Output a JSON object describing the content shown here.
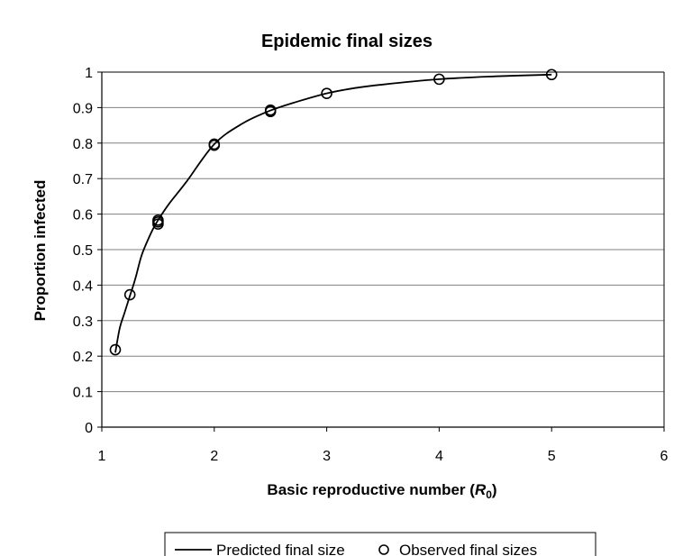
{
  "chart_data": {
    "type": "scatter",
    "title": "Epidemic final sizes",
    "xlabel": {
      "prefix": "Basic reproductive number (",
      "symbol": "R",
      "subscript": "0",
      "suffix": ")"
    },
    "ylabel": "Proportion infected",
    "xlim": [
      1,
      6
    ],
    "ylim": [
      0,
      1
    ],
    "x_ticks": [
      "1",
      "2",
      "3",
      "4",
      "5",
      "6"
    ],
    "y_ticks": [
      "0",
      "0.1",
      "0.2",
      "0.3",
      "0.4",
      "0.5",
      "0.6",
      "0.7",
      "0.8",
      "0.9",
      "1"
    ],
    "grid": "horizontal",
    "legend_position": "bottom",
    "series": [
      {
        "name": "Predicted final size",
        "type": "line",
        "color": "#000000",
        "x": [
          1.12,
          1.16,
          1.2,
          1.25,
          1.3,
          1.35,
          1.4,
          1.45,
          1.5,
          1.6,
          1.75,
          2.0,
          2.25,
          2.5,
          2.75,
          3.0,
          3.25,
          3.5,
          4.0,
          4.5,
          5.0
        ],
        "y": [
          0.21,
          0.28,
          0.32,
          0.37,
          0.42,
          0.48,
          0.52,
          0.555,
          0.583,
          0.63,
          0.69,
          0.797,
          0.855,
          0.892,
          0.918,
          0.94,
          0.955,
          0.965,
          0.98,
          0.988,
          0.993
        ]
      },
      {
        "name": "Observed final sizes",
        "type": "scatter",
        "marker": "open-circle",
        "color": "#000000",
        "x": [
          1.12,
          1.25,
          1.5,
          1.5,
          1.5,
          2.0,
          2.0,
          2.5,
          2.5,
          3.0,
          4.0,
          5.0
        ],
        "y": [
          0.218,
          0.373,
          0.572,
          0.578,
          0.583,
          0.794,
          0.797,
          0.889,
          0.893,
          0.94,
          0.98,
          0.993
        ]
      }
    ]
  }
}
